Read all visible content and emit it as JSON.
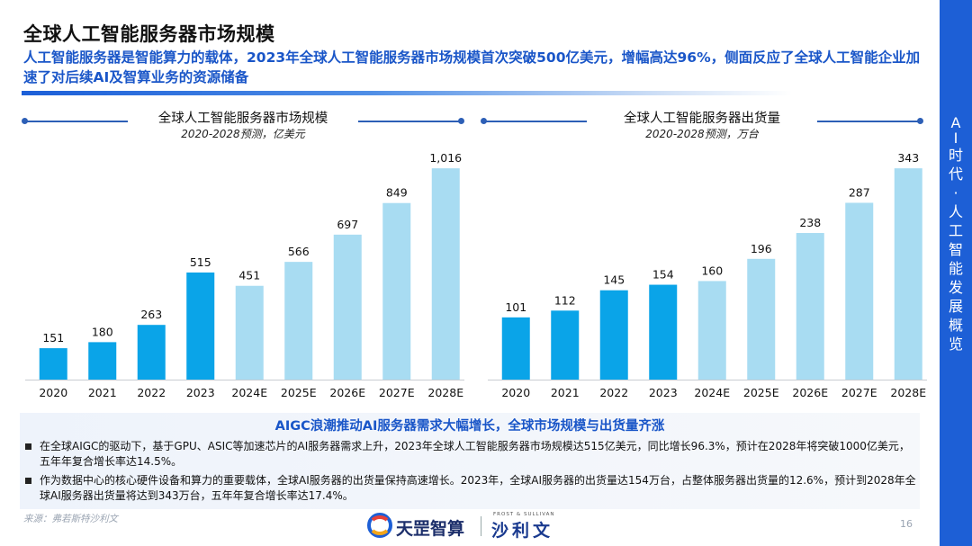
{
  "header": {
    "title": "全球人工智能服务器市场规模",
    "subtitle": "人工智能服务器是智能算力的载体，2023年全球人工智能服务器市场规模首次突破500亿美元，增幅高达96%，侧面反应了全球人工智能企业加速了对后续AI及智算业务的资源储备"
  },
  "sidebar": {
    "chars": [
      "A",
      "I",
      "时",
      "代",
      "·",
      "人",
      "工",
      "智",
      "能",
      "发",
      "展",
      "概",
      "览"
    ]
  },
  "colors": {
    "bar_dark": "#0aa4e8",
    "bar_light": "#a8dcf2",
    "accent": "#1a56c8"
  },
  "chart_data": [
    {
      "type": "bar",
      "title": "全球人工智能服务器市场规模",
      "subtitle": "2020-2028预测，亿美元",
      "categories": [
        "2020",
        "2021",
        "2022",
        "2023",
        "2024E",
        "2025E",
        "2026E",
        "2027E",
        "2028E"
      ],
      "values": [
        151,
        180,
        263,
        515,
        451,
        566,
        697,
        849,
        1016
      ],
      "value_labels": [
        "151",
        "180",
        "263",
        "515",
        "451",
        "566",
        "697",
        "849",
        "1,016"
      ],
      "forecast": [
        false,
        false,
        false,
        false,
        true,
        true,
        true,
        true,
        true
      ],
      "ylim": [
        0,
        1090
      ]
    },
    {
      "type": "bar",
      "title": "全球人工智能服务器出货量",
      "subtitle": "2020-2028预测，万台",
      "categories": [
        "2020",
        "2021",
        "2022",
        "2023",
        "2024E",
        "2025E",
        "2026E",
        "2027E",
        "2028E"
      ],
      "values": [
        101,
        112,
        145,
        154,
        160,
        196,
        238,
        287,
        343
      ],
      "value_labels": [
        "101",
        "112",
        "145",
        "154",
        "160",
        "196",
        "238",
        "287",
        "343"
      ],
      "forecast": [
        false,
        false,
        false,
        false,
        true,
        true,
        true,
        true,
        true
      ],
      "ylim": [
        0,
        368
      ]
    }
  ],
  "summary": {
    "title": "AIGC浪潮推动AI服务器需求大幅增长，全球市场规模与出货量齐涨",
    "bullets": [
      "在全球AIGC的驱动下，基于GPU、ASIC等加速芯片的AI服务器需求上升，2023年全球人工智能服务器市场规模达515亿美元，同比增长96.3%，预计在2028年将突破1000亿美元，五年年复合增长率达14.5%。",
      "作为数据中心的核心硬件设备和算力的重要载体，全球AI服务器的出货量保持高速增长。2023年，全球AI服务器的出货量达154万台，占整体服务器出货量的12.6%，预计到2028年全球AI服务器出货量将达到343万台，五年年复合增长率达17.4%。"
    ]
  },
  "footer": {
    "source": "来源：弗若斯特沙利文",
    "page_number": "16",
    "logo_primary": "天罡智算",
    "logo_secondary": "沙利文",
    "logo_english": "FROST & SULLIVAN"
  }
}
